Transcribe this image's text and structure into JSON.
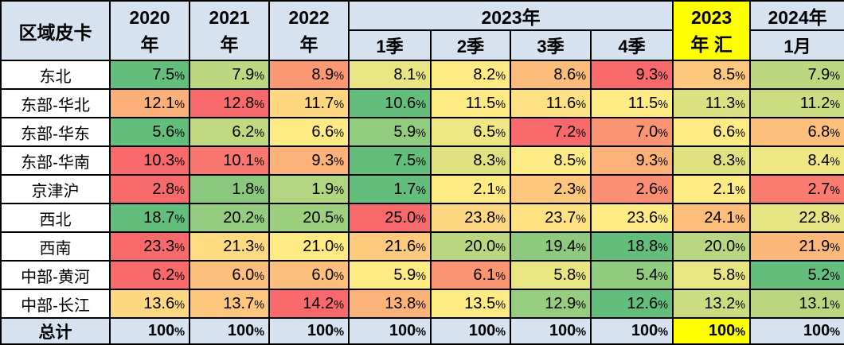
{
  "colors": {
    "header_bg": "#D6E2F0",
    "total_row_bg": "#D6E2F0",
    "highlight_yellow": "#FFFF00",
    "region_col_bg": "#FFFFFF",
    "border": "#000000",
    "text": "#000000"
  },
  "table": {
    "corner_label": "区域皮卡",
    "header": {
      "y2020": {
        "l1": "2020",
        "l2": "年"
      },
      "y2021": {
        "l1": "2021",
        "l2": "年"
      },
      "y2022": {
        "l1": "2022",
        "l2": "年"
      },
      "y2023_group": "2023年",
      "quarters": [
        "1季",
        "2季",
        "3季",
        "4季"
      ],
      "y2023_sum": {
        "l1": "2023",
        "l2": "年 汇"
      },
      "y2024": {
        "l1": "2024年",
        "l2": "1月"
      }
    }
  },
  "chart_data": {
    "type": "heatmap",
    "columns": [
      "2020年",
      "2021年",
      "2022年",
      "2023年1季",
      "2023年2季",
      "2023年3季",
      "2023年4季",
      "2023年汇",
      "2024年1月"
    ],
    "rows": [
      "东北",
      "东部-华北",
      "东部-华东",
      "东部-华南",
      "京津沪",
      "西北",
      "西南",
      "中部-黄河",
      "中部-长江"
    ],
    "values_pct": [
      [
        7.5,
        7.9,
        8.9,
        8.1,
        8.2,
        8.6,
        9.3,
        8.5,
        7.9
      ],
      [
        12.1,
        12.8,
        11.7,
        10.6,
        11.5,
        11.6,
        11.5,
        11.3,
        11.2
      ],
      [
        5.6,
        6.2,
        6.6,
        5.9,
        6.5,
        7.2,
        7.0,
        6.6,
        6.8
      ],
      [
        10.3,
        10.1,
        9.3,
        7.5,
        8.3,
        8.5,
        9.3,
        8.3,
        8.4
      ],
      [
        2.8,
        1.8,
        1.9,
        1.7,
        2.1,
        2.3,
        2.6,
        2.1,
        2.7
      ],
      [
        18.7,
        20.2,
        20.5,
        25.0,
        23.8,
        23.7,
        23.6,
        24.1,
        22.8
      ],
      [
        23.3,
        21.3,
        21.0,
        21.6,
        20.0,
        19.4,
        18.8,
        20.0,
        21.9
      ],
      [
        6.2,
        6.0,
        6.0,
        5.9,
        6.1,
        5.8,
        5.4,
        5.8,
        5.2
      ],
      [
        13.6,
        13.7,
        14.2,
        13.8,
        13.5,
        12.9,
        12.6,
        13.2,
        13.1
      ]
    ],
    "total_row": {
      "label": "总计",
      "values_pct": [
        100,
        100,
        100,
        100,
        100,
        100,
        100,
        100,
        100
      ],
      "highlight_col_index": 7
    },
    "value_suffix": "%",
    "color_scale": {
      "scope": "per-row",
      "min_color": "#63BE7B",
      "mid_color": "#FFEB84",
      "max_color": "#F8696B",
      "mid_point": "median"
    },
    "legend": "none",
    "grid": true
  }
}
